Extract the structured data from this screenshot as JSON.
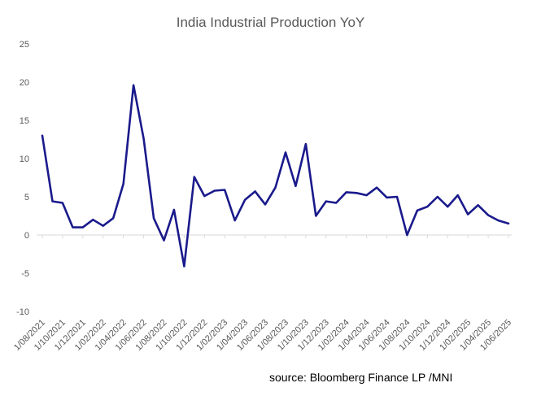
{
  "chart_data": {
    "type": "line",
    "title": "India Industrial Production YoY",
    "xlabel": "",
    "ylabel": "",
    "ylim": [
      -10,
      25
    ],
    "yticks": [
      -10,
      -5,
      0,
      5,
      10,
      15,
      20,
      25
    ],
    "grid": false,
    "legend": "none",
    "line_color": "#1a1a8c",
    "x": [
      "1/08/2021",
      "1/09/2021",
      "1/10/2021",
      "1/11/2021",
      "1/12/2021",
      "1/01/2022",
      "1/02/2022",
      "1/03/2022",
      "1/04/2022",
      "1/05/2022",
      "1/06/2022",
      "1/07/2022",
      "1/08/2022",
      "1/09/2022",
      "1/10/2022",
      "1/11/2022",
      "1/12/2022",
      "1/01/2023",
      "1/02/2023",
      "1/03/2023",
      "1/04/2023",
      "1/05/2023",
      "1/06/2023",
      "1/07/2023",
      "1/08/2023",
      "1/09/2023",
      "1/10/2023",
      "1/11/2023",
      "1/12/2023",
      "1/01/2024",
      "1/02/2024",
      "1/03/2024",
      "1/04/2024",
      "1/05/2024",
      "1/06/2024",
      "1/07/2024",
      "1/08/2024",
      "1/09/2024",
      "1/10/2024",
      "1/11/2024",
      "1/12/2024",
      "1/01/2025",
      "1/02/2025",
      "1/03/2025",
      "1/04/2025",
      "1/05/2025",
      "1/06/2025"
    ],
    "x_tick_labels": [
      "1/08/2021",
      "1/10/2021",
      "1/12/2021",
      "1/02/2022",
      "1/04/2022",
      "1/06/2022",
      "1/08/2022",
      "1/10/2022",
      "1/12/2022",
      "1/02/2023",
      "1/04/2023",
      "1/06/2023",
      "1/08/2023",
      "1/10/2023",
      "1/12/2023",
      "1/02/2024",
      "1/04/2024",
      "1/06/2024",
      "1/08/2024",
      "1/10/2024",
      "1/12/2024",
      "1/02/2025",
      "1/04/2025",
      "1/06/2025"
    ],
    "series": [
      {
        "name": "India Industrial Production YoY",
        "values": [
          13.0,
          4.4,
          4.2,
          1.0,
          1.0,
          2.0,
          1.2,
          2.2,
          6.7,
          19.6,
          12.6,
          2.2,
          -0.7,
          3.3,
          -4.1,
          7.6,
          5.1,
          5.8,
          5.9,
          1.9,
          4.6,
          5.7,
          4.0,
          6.2,
          10.8,
          6.4,
          11.9,
          2.5,
          4.4,
          4.2,
          5.6,
          5.5,
          5.2,
          6.2,
          4.9,
          5.0,
          0.0,
          3.2,
          3.7,
          5.0,
          3.7,
          5.2,
          2.7,
          3.9,
          2.6,
          1.9,
          1.5
        ]
      }
    ]
  },
  "source_text": "source: Bloomberg Finance LP /MNI"
}
